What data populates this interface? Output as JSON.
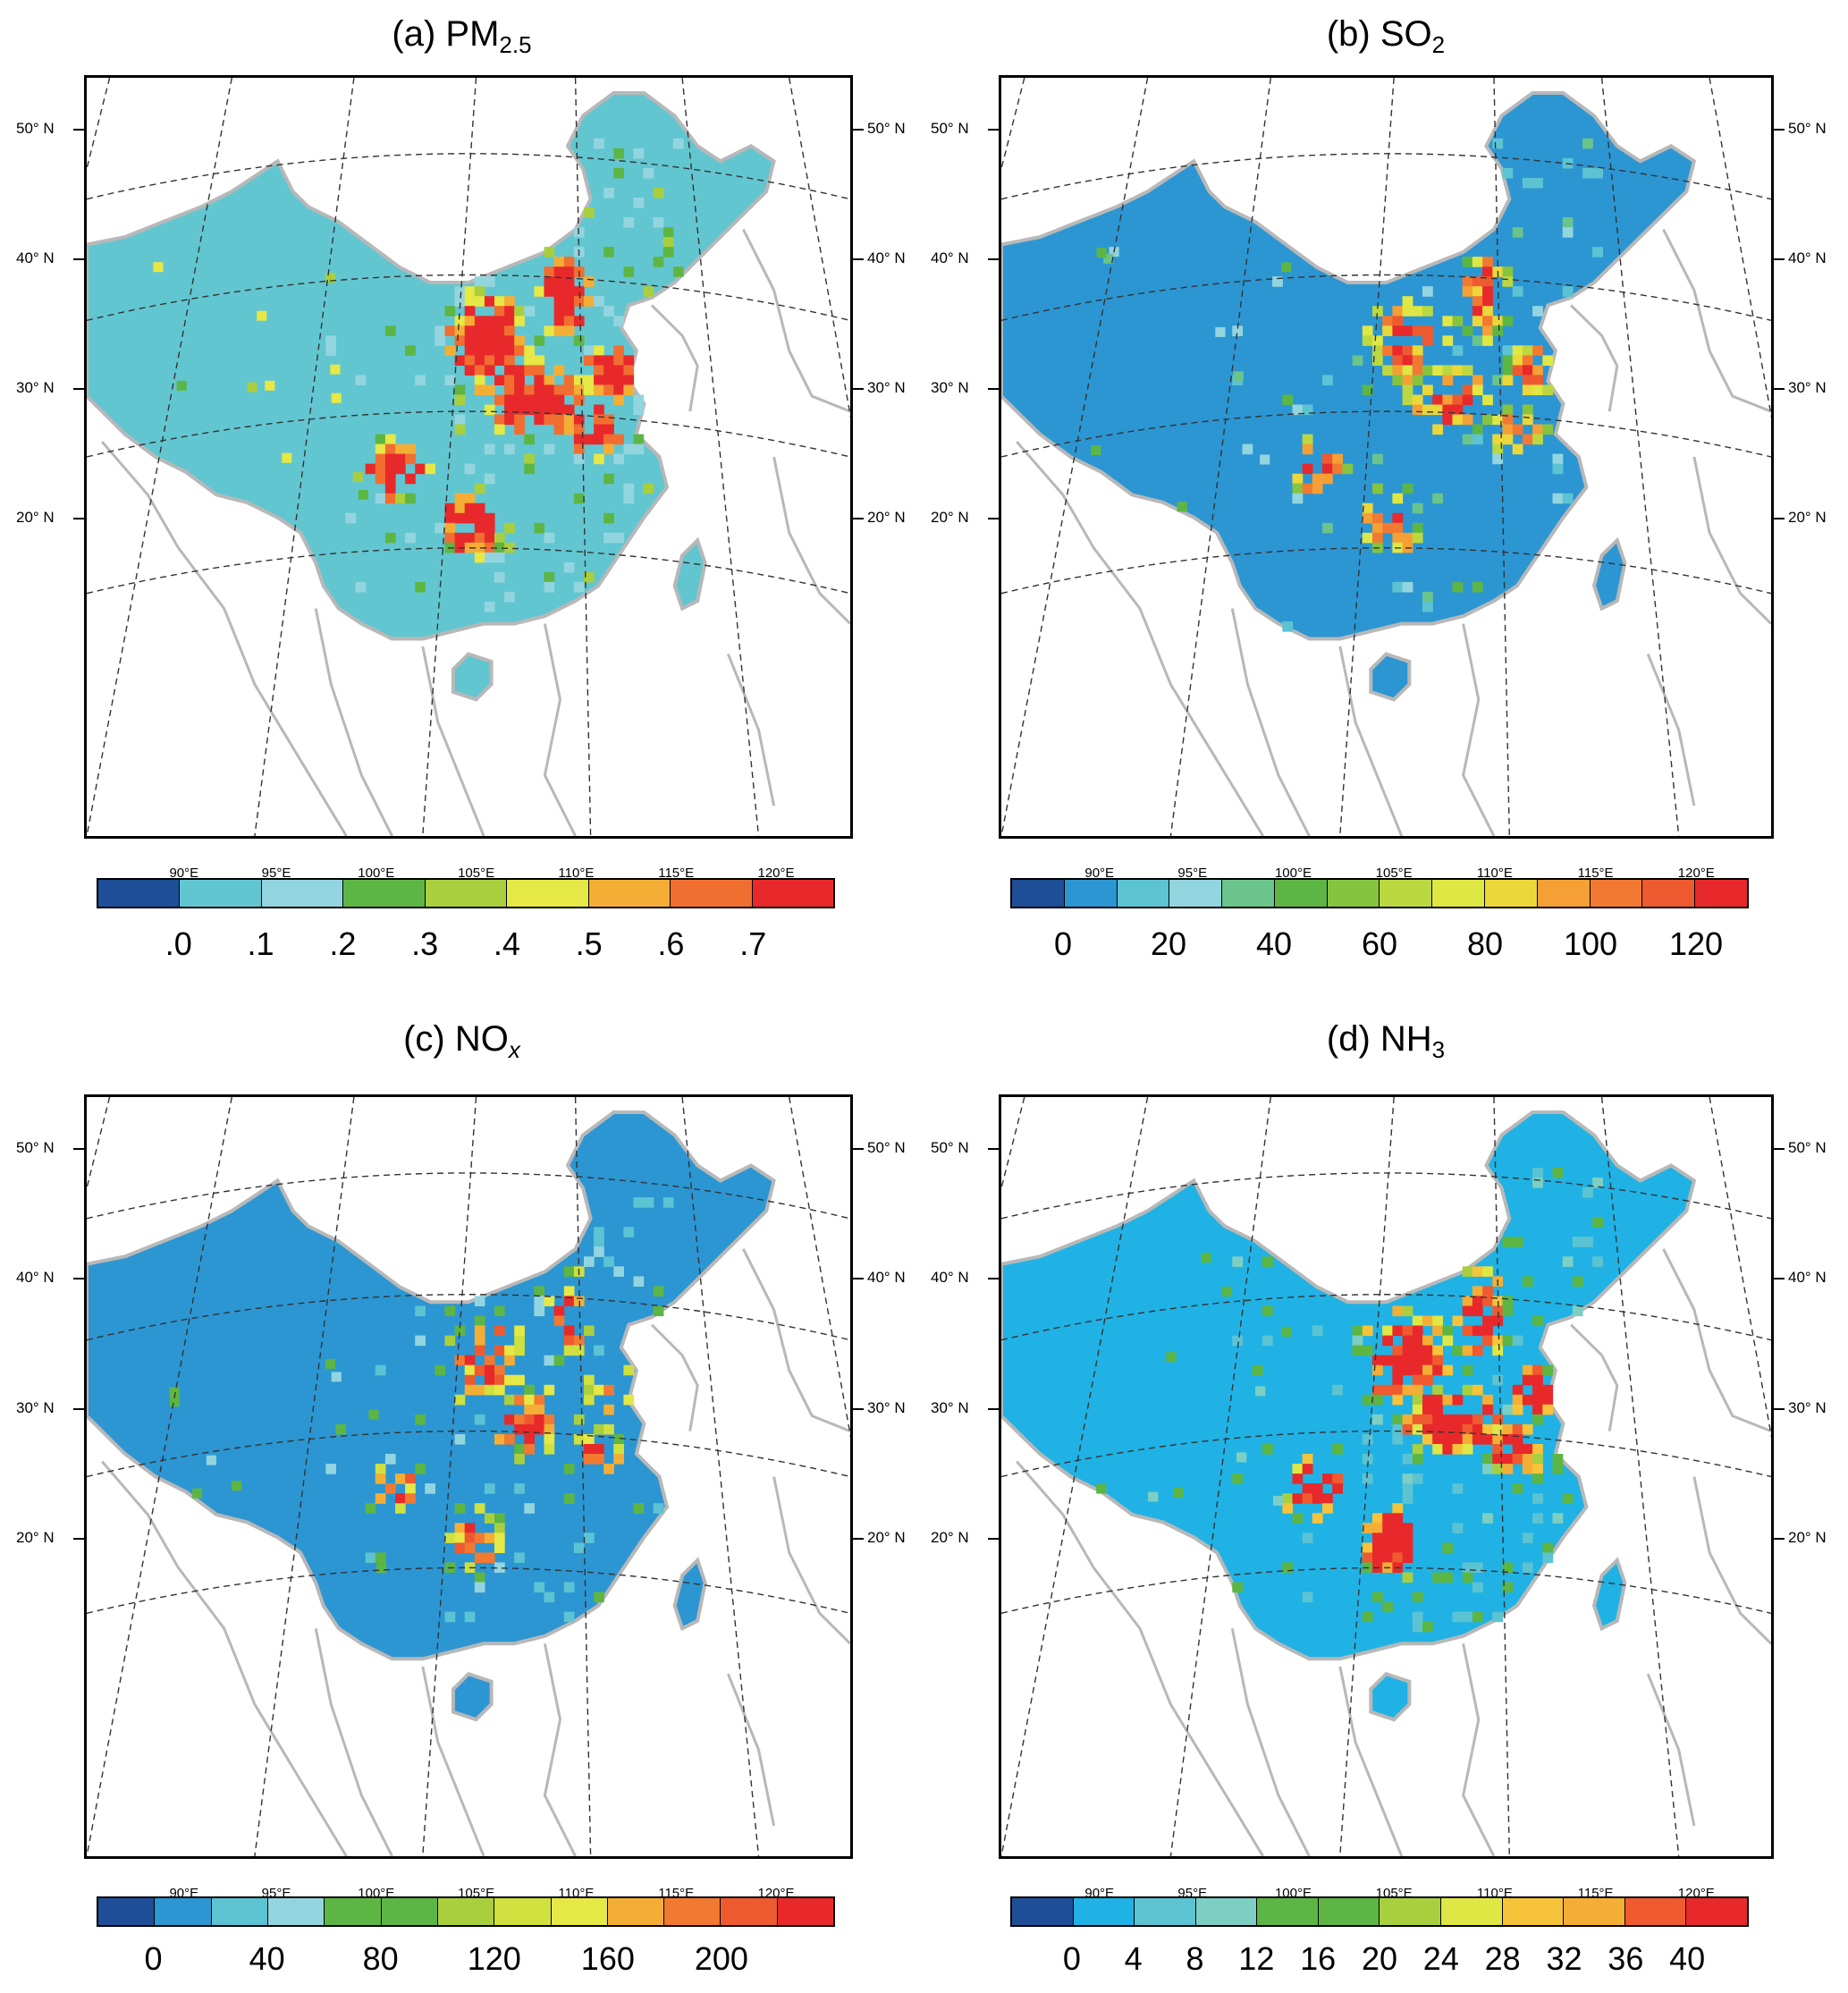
{
  "panels": [
    {
      "id": "a",
      "title_prefix": "(a) PM",
      "title_sub": "2.5",
      "title_sub_italic": false,
      "colors": [
        "#1f4e98",
        "#62c6d1",
        "#93d5df",
        "#5db643",
        "#a9cf3f",
        "#e6e845",
        "#f4ae35",
        "#f16e31",
        "#e8292b"
      ],
      "background_color": "#62c6d1",
      "cbar_labels": [
        ".0",
        ".1",
        ".2",
        ".3",
        ".4",
        ".5",
        ".6",
        ".7"
      ],
      "hotspot_level": "high"
    },
    {
      "id": "b",
      "title_prefix": "(b) SO",
      "title_sub": "2",
      "title_sub_italic": false,
      "colors": [
        "#1f4e98",
        "#2c96d3",
        "#5cc3d3",
        "#93d5df",
        "#6ac48c",
        "#5db643",
        "#86c440",
        "#bcd840",
        "#dfe745",
        "#ebd73a",
        "#f4a034",
        "#f27931",
        "#ee5a2f",
        "#e8292b"
      ],
      "background_color": "#2c96d3",
      "cbar_labels": [
        "0",
        "20",
        "40",
        "60",
        "80",
        "100",
        "120"
      ],
      "hotspot_level": "low"
    },
    {
      "id": "c",
      "title_prefix": "(c) NO",
      "title_sub": "x",
      "title_sub_italic": true,
      "colors": [
        "#1f4e98",
        "#2c96d3",
        "#5cc3d3",
        "#93d5df",
        "#5db643",
        "#5db643",
        "#a9cf3f",
        "#cfe03f",
        "#e6e845",
        "#f4ae35",
        "#f27931",
        "#ee5a2f",
        "#e8292b"
      ],
      "background_color": "#2c96d3",
      "cbar_labels": [
        "0",
        "40",
        "80",
        "120",
        "160",
        "200"
      ],
      "hotspot_level": "low"
    },
    {
      "id": "d",
      "title_prefix": "(d) NH",
      "title_sub": "3",
      "title_sub_italic": false,
      "colors": [
        "#1f4e98",
        "#20b2e4",
        "#5cc3d3",
        "#7ecfc3",
        "#5db643",
        "#5db643",
        "#a9cf3f",
        "#dfe745",
        "#f6c33a",
        "#f4ae35",
        "#f05a2f",
        "#e8292b"
      ],
      "background_color": "#20b2e4",
      "cbar_labels": [
        "0",
        "4",
        "8",
        "12",
        "16",
        "20",
        "24",
        "28",
        "32",
        "36",
        "40"
      ],
      "hotspot_level": "mid"
    }
  ],
  "lat_labels": [
    "50° N",
    "40° N",
    "30° N",
    "20° N"
  ],
  "lon_labels": [
    "90°E",
    "95°E",
    "100°E",
    "105°E",
    "110°E",
    "115°E",
    "120°E"
  ],
  "colors": {
    "border_gray": "#b8b8b8",
    "ocean": "#ffffff",
    "grid": "#333333"
  }
}
